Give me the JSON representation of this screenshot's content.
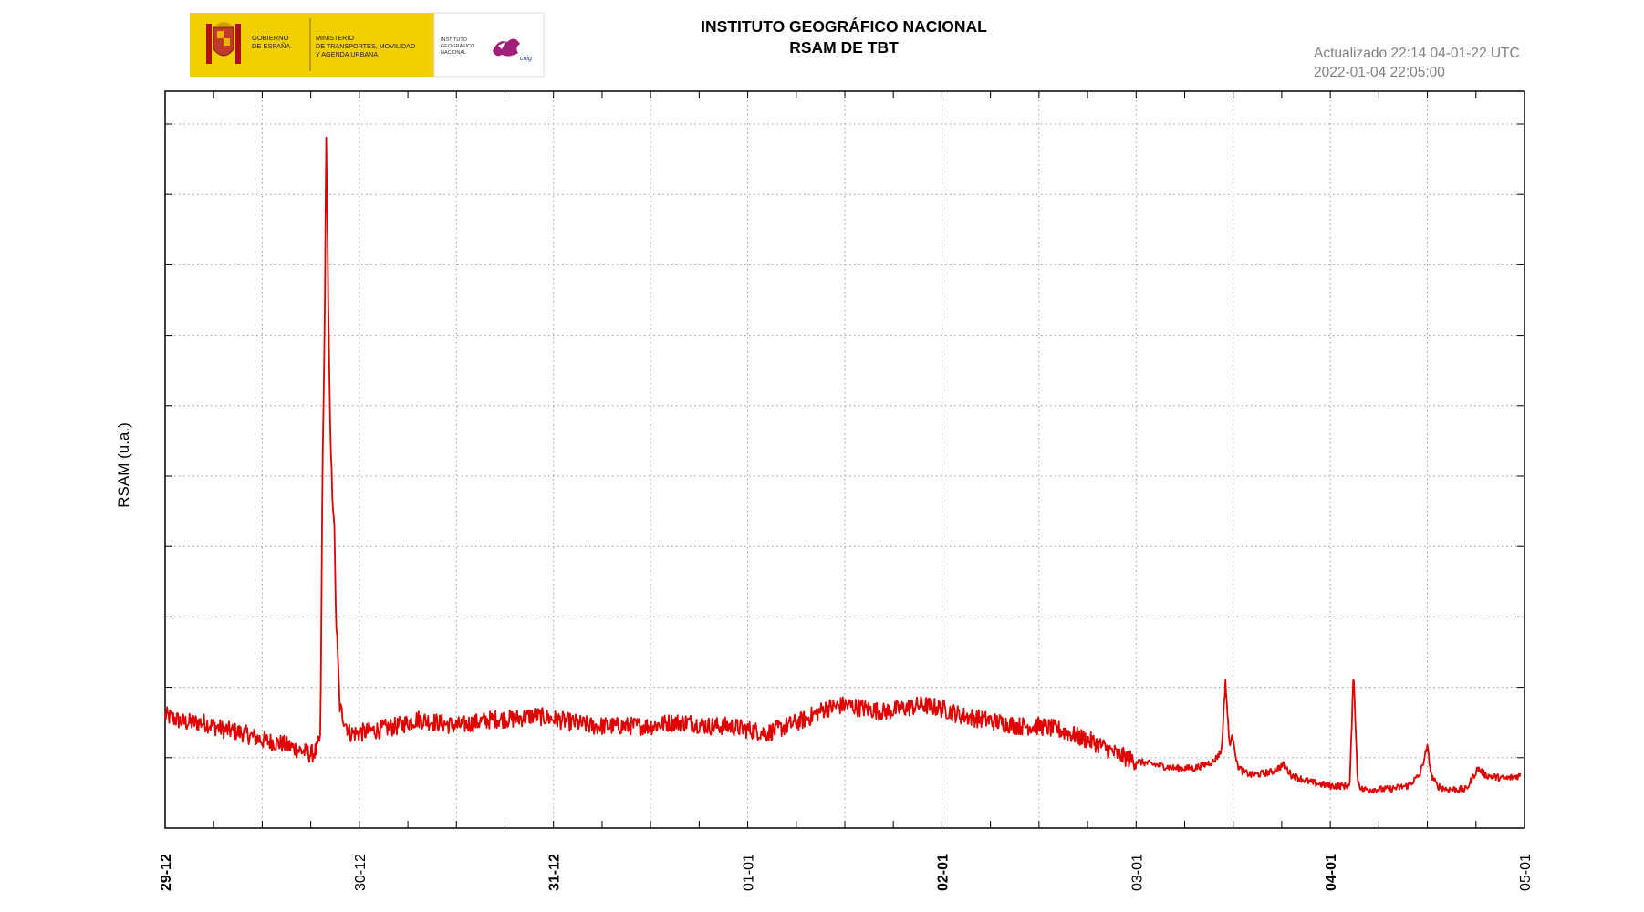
{
  "header": {
    "title_line1": "INSTITUTO GEOGRÁFICO NACIONAL",
    "title_line2": "RSAM DE TBT",
    "updated": "Actualizado 22:14 04-01-22 UTC",
    "timestamp": "2022-01-04 22:05:00"
  },
  "logo": {
    "gov_line1": "GOBIERNO",
    "gov_line2": "DE ESPAÑA",
    "ministry_line1": "MINISTERIO",
    "ministry_line2": "DE TRANSPORTES, MOVILIDAD",
    "ministry_line3": "Y AGENDA URBANA",
    "ign_line1": "INSTITUTO",
    "ign_line2": "GEOGRÁFICO",
    "ign_line3": "NACIONAL",
    "ign_mark": "cnig",
    "yellow": "#f2cf00"
  },
  "chart_data": {
    "type": "line",
    "title": "RSAM DE TBT",
    "xlabel": "",
    "ylabel": "RSAM (u.a.)",
    "x_unit": "days",
    "xlim": [
      "2021-12-29 00:00",
      "2022-01-05 00:00"
    ],
    "ylim": [
      0,
      10
    ],
    "y_tick_labels_shown": false,
    "grid": true,
    "x_ticks": [
      {
        "label": "29-12",
        "day": 0,
        "bold": true
      },
      {
        "label": "30-12",
        "day": 1,
        "bold": false
      },
      {
        "label": "31-12",
        "day": 2,
        "bold": true
      },
      {
        "label": "01-01",
        "day": 3,
        "bold": false
      },
      {
        "label": "02-01",
        "day": 4,
        "bold": true
      },
      {
        "label": "03-01",
        "day": 5,
        "bold": false
      },
      {
        "label": "04-01",
        "day": 6,
        "bold": true
      },
      {
        "label": "05-01",
        "day": 7,
        "bold": false
      }
    ],
    "series": [
      {
        "color": "#e00000",
        "x_days": [
          0.0,
          0.1,
          0.2,
          0.3,
          0.4,
          0.5,
          0.6,
          0.7,
          0.75,
          0.78,
          0.8,
          0.81,
          0.82,
          0.83,
          0.84,
          0.85,
          0.86,
          0.87,
          0.88,
          0.9,
          0.95,
          1.0,
          1.1,
          1.2,
          1.3,
          1.4,
          1.5,
          1.6,
          1.7,
          1.8,
          1.9,
          2.0,
          2.1,
          2.2,
          2.3,
          2.4,
          2.5,
          2.6,
          2.7,
          2.8,
          2.9,
          3.0,
          3.1,
          3.2,
          3.3,
          3.4,
          3.5,
          3.6,
          3.7,
          3.8,
          3.9,
          4.0,
          4.1,
          4.2,
          4.3,
          4.4,
          4.5,
          4.6,
          4.7,
          4.8,
          4.9,
          5.0,
          5.1,
          5.2,
          5.3,
          5.4,
          5.44,
          5.46,
          5.48,
          5.5,
          5.52,
          5.55,
          5.6,
          5.7,
          5.76,
          5.8,
          5.9,
          6.0,
          6.1,
          6.12,
          6.14,
          6.16,
          6.2,
          6.3,
          6.4,
          6.46,
          6.5,
          6.52,
          6.55,
          6.6,
          6.7,
          6.76,
          6.8,
          6.9,
          6.98
        ],
        "values": [
          1.6,
          1.5,
          1.5,
          1.4,
          1.35,
          1.25,
          1.2,
          1.1,
          1.05,
          1.1,
          1.3,
          5.0,
          6.8,
          9.9,
          7.5,
          5.6,
          4.8,
          4.4,
          3.0,
          1.7,
          1.35,
          1.35,
          1.4,
          1.45,
          1.55,
          1.5,
          1.45,
          1.5,
          1.55,
          1.55,
          1.6,
          1.55,
          1.5,
          1.45,
          1.45,
          1.45,
          1.45,
          1.5,
          1.5,
          1.45,
          1.45,
          1.4,
          1.35,
          1.45,
          1.55,
          1.7,
          1.75,
          1.7,
          1.65,
          1.7,
          1.75,
          1.7,
          1.6,
          1.55,
          1.5,
          1.45,
          1.45,
          1.4,
          1.3,
          1.2,
          1.05,
          0.95,
          0.9,
          0.85,
          0.85,
          0.95,
          1.1,
          2.1,
          1.2,
          1.3,
          0.9,
          0.8,
          0.75,
          0.8,
          0.9,
          0.75,
          0.65,
          0.6,
          0.6,
          2.25,
          0.7,
          0.55,
          0.55,
          0.55,
          0.6,
          0.75,
          1.15,
          0.75,
          0.6,
          0.55,
          0.55,
          0.85,
          0.75,
          0.7,
          0.75
        ]
      }
    ]
  }
}
